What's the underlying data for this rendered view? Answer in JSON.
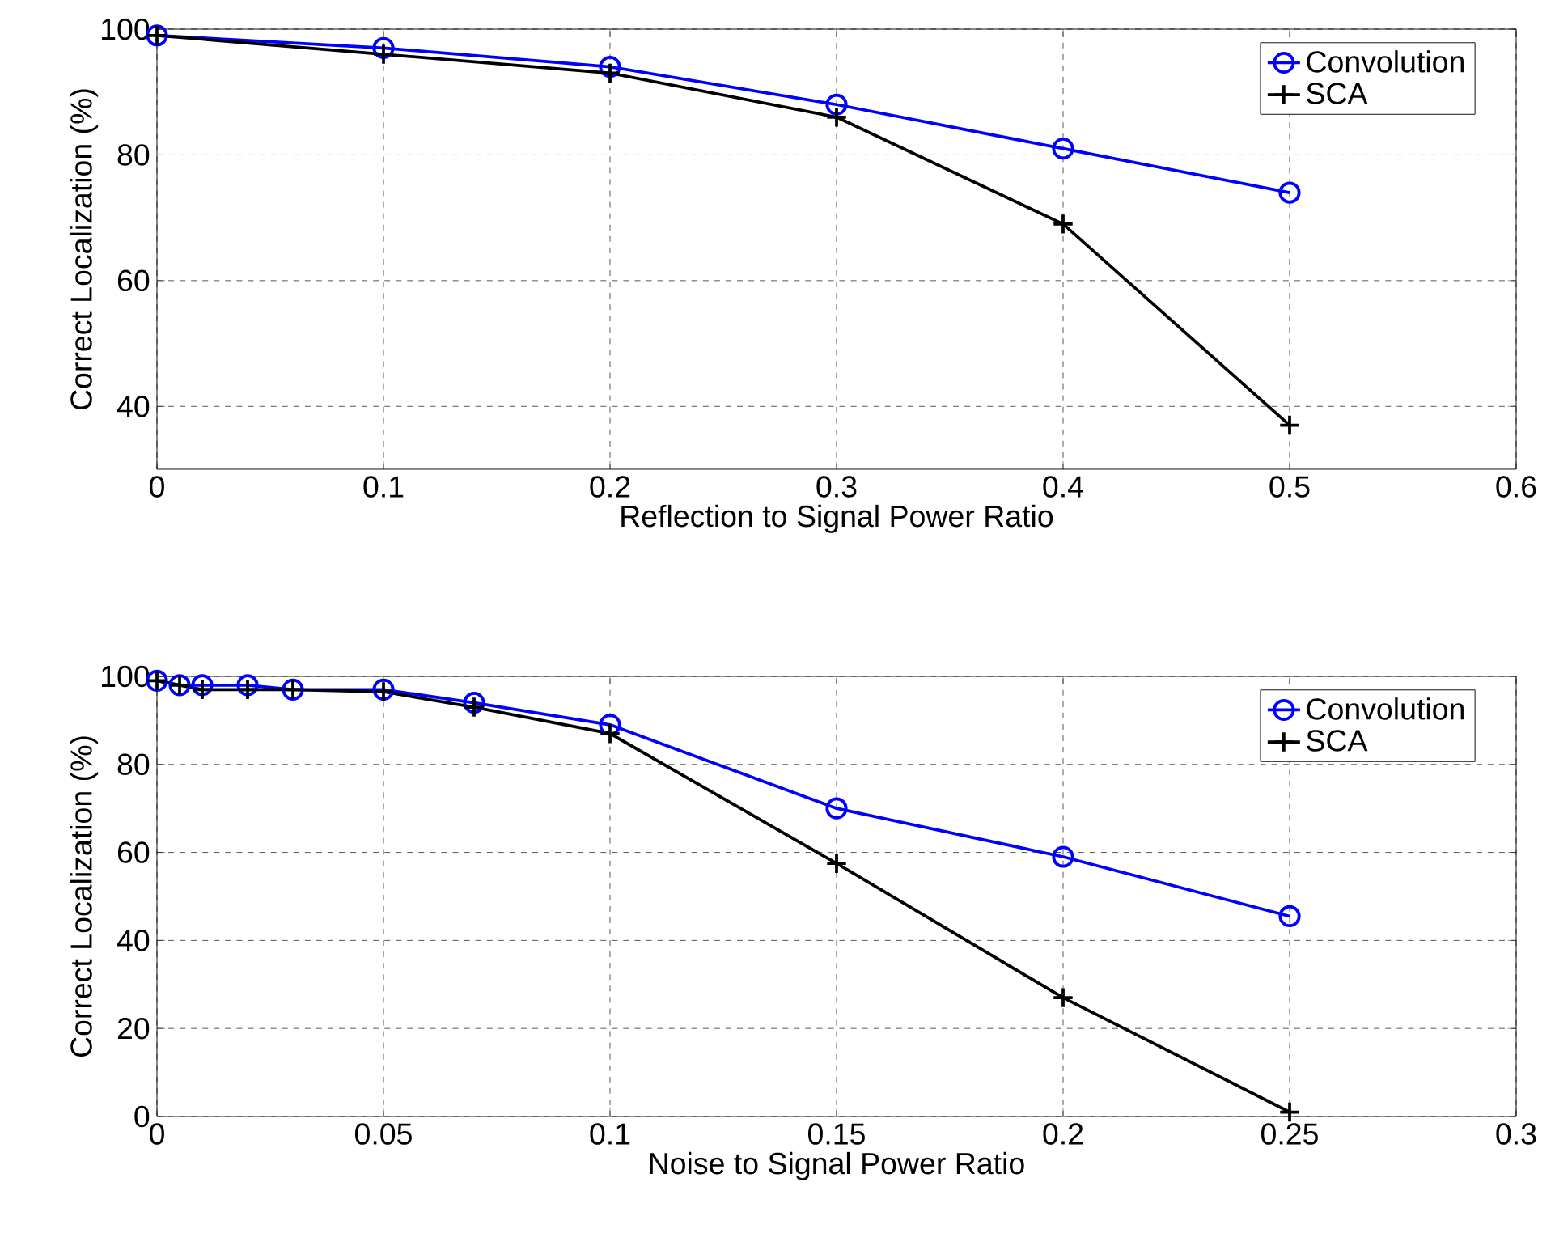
{
  "chart_data": [
    {
      "type": "line",
      "xlabel": "Reflection to Signal Power Ratio",
      "ylabel": "Correct Localization (%)",
      "xlim": [
        0,
        0.6
      ],
      "xticks": [
        0,
        0.1,
        0.2,
        0.3,
        0.4,
        0.5,
        0.6
      ],
      "ylim": [
        30,
        100
      ],
      "yticks": [
        40,
        60,
        80,
        100
      ],
      "grid": true,
      "legend": "top right",
      "x": [
        0,
        0.1,
        0.2,
        0.3,
        0.4,
        0.5
      ],
      "series": [
        {
          "name": "Convolution",
          "color": "#0000ff",
          "marker": "circle",
          "values": [
            99,
            97,
            94,
            88,
            81,
            74
          ]
        },
        {
          "name": "SCA",
          "color": "#000000",
          "marker": "cross",
          "values": [
            99,
            96,
            93,
            86,
            69,
            37
          ]
        }
      ]
    },
    {
      "type": "line",
      "xlabel": "Noise to Signal Power Ratio",
      "ylabel": "Correct Localization (%)",
      "xlim": [
        0,
        0.3
      ],
      "xticks": [
        0,
        0.05,
        0.1,
        0.15,
        0.2,
        0.25,
        0.3
      ],
      "ylim": [
        0,
        100
      ],
      "yticks": [
        0,
        20,
        40,
        60,
        80,
        100
      ],
      "grid": true,
      "legend": "top right",
      "x": [
        0,
        0.005,
        0.01,
        0.02,
        0.03,
        0.05,
        0.07,
        0.1,
        0.15,
        0.2,
        0.25
      ],
      "series": [
        {
          "name": "Convolution",
          "color": "#0000ff",
          "marker": "circle",
          "values": [
            99,
            98,
            98,
            98,
            97,
            97,
            94,
            89,
            70,
            59,
            45.5
          ]
        },
        {
          "name": "SCA",
          "color": "#000000",
          "marker": "cross",
          "values": [
            99,
            98,
            97,
            97,
            97,
            96.5,
            93,
            87,
            57.5,
            27,
            1
          ]
        }
      ]
    }
  ]
}
